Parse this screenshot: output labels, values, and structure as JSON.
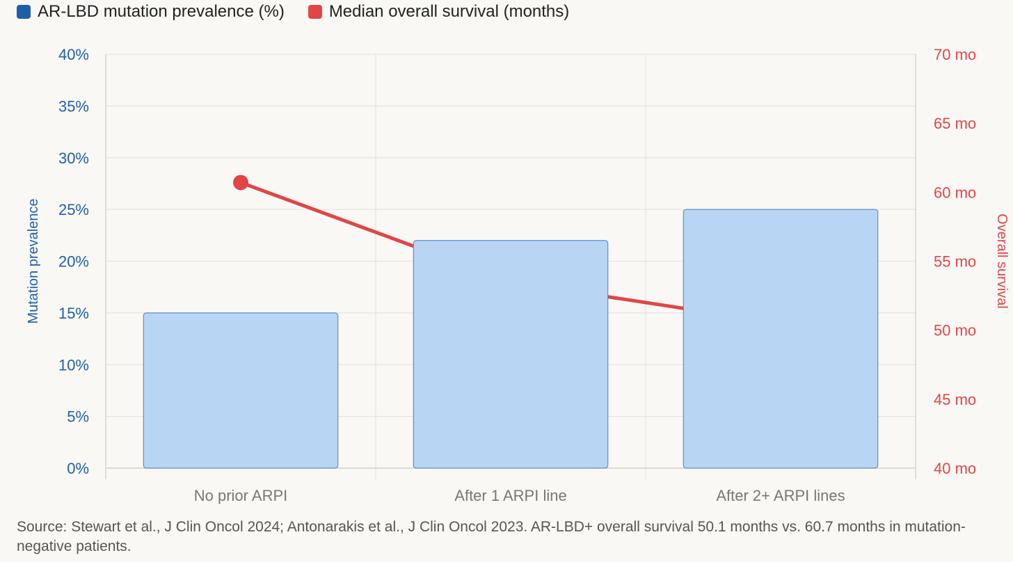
{
  "legend": {
    "bar_label": "AR-LBD mutation prevalence (%)",
    "line_label": "Median overall survival (months)"
  },
  "colors": {
    "bar_fill": "#b8d5f4",
    "bar_stroke": "#5b8fc9",
    "bar_legend": "#1f5fa8",
    "line": "#e04646",
    "grid": "#e6e3df",
    "left_axis_text": "#1f5fa8",
    "right_axis_text": "#e04646"
  },
  "chart_data": {
    "type": "bar",
    "categories": [
      "No prior ARPI",
      "After 1 ARPI line",
      "After 2+ ARPI lines"
    ],
    "series": [
      {
        "name": "AR-LBD mutation prevalence (%)",
        "type": "bar",
        "axis": "left",
        "values": [
          15,
          22,
          25
        ]
      },
      {
        "name": "Median overall survival (months)",
        "type": "line",
        "axis": "right",
        "values": [
          60.7,
          53.5,
          50.5
        ]
      }
    ],
    "ylabel": "Mutation prevalence",
    "y2label": "Overall survival",
    "ylim": [
      0,
      40
    ],
    "y2lim": [
      40,
      70
    ],
    "yticks": [
      "0%",
      "5%",
      "10%",
      "15%",
      "20%",
      "25%",
      "30%",
      "35%",
      "40%"
    ],
    "y2ticks": [
      "40 mo",
      "45 mo",
      "50 mo",
      "55 mo",
      "60 mo",
      "65 mo",
      "70 mo"
    ],
    "grid": true,
    "legend_position": "top-left"
  },
  "source_note": "Source: Stewart et al., J Clin Oncol 2024; Antonarakis et al., J Clin Oncol 2023. AR-LBD+ overall survival 50.1 months vs. 60.7 months in mutation-negative patients."
}
